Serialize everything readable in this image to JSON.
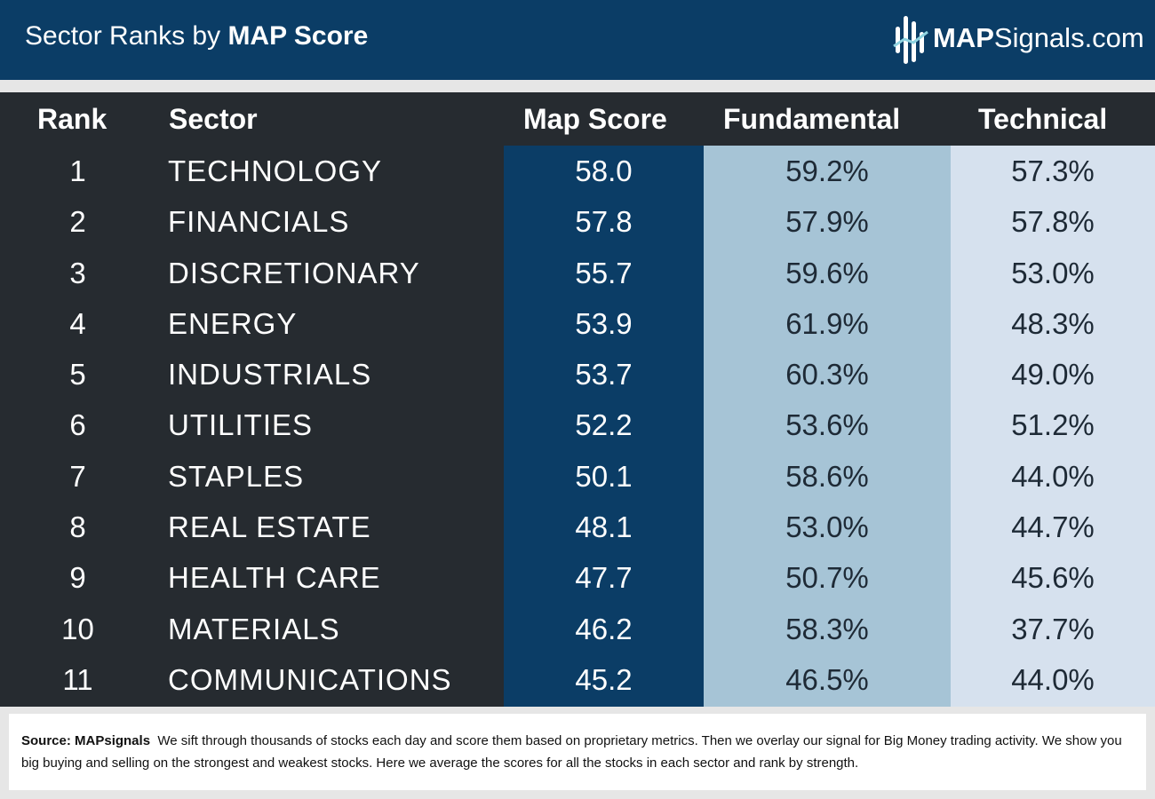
{
  "header": {
    "title_prefix": "Sector Ranks by ",
    "title_bold": "MAP Score",
    "logo_bold": "MAP",
    "logo_rest": "Signals.com"
  },
  "table": {
    "columns": [
      "Rank",
      "Sector",
      "Map Score",
      "Fundamental",
      "Technical"
    ]
  },
  "chart_data": {
    "type": "table",
    "title": "Sector Ranks by MAP Score",
    "columns": [
      "Rank",
      "Sector",
      "Map Score",
      "Fundamental",
      "Technical"
    ],
    "rows": [
      {
        "rank": "1",
        "sector": "TECHNOLOGY",
        "map_score": "58.0",
        "fundamental": "59.2%",
        "technical": "57.3%"
      },
      {
        "rank": "2",
        "sector": "FINANCIALS",
        "map_score": "57.8",
        "fundamental": "57.9%",
        "technical": "57.8%"
      },
      {
        "rank": "3",
        "sector": "DISCRETIONARY",
        "map_score": "55.7",
        "fundamental": "59.6%",
        "technical": "53.0%"
      },
      {
        "rank": "4",
        "sector": "ENERGY",
        "map_score": "53.9",
        "fundamental": "61.9%",
        "technical": "48.3%"
      },
      {
        "rank": "5",
        "sector": "INDUSTRIALS",
        "map_score": "53.7",
        "fundamental": "60.3%",
        "technical": "49.0%"
      },
      {
        "rank": "6",
        "sector": "UTILITIES",
        "map_score": "52.2",
        "fundamental": "53.6%",
        "technical": "51.2%"
      },
      {
        "rank": "7",
        "sector": "STAPLES",
        "map_score": "50.1",
        "fundamental": "58.6%",
        "technical": "44.0%"
      },
      {
        "rank": "8",
        "sector": "REAL ESTATE",
        "map_score": "48.1",
        "fundamental": "53.0%",
        "technical": "44.7%"
      },
      {
        "rank": "9",
        "sector": "HEALTH CARE",
        "map_score": "47.7",
        "fundamental": "50.7%",
        "technical": "45.6%"
      },
      {
        "rank": "10",
        "sector": "MATERIALS",
        "map_score": "46.2",
        "fundamental": "58.3%",
        "technical": "37.7%"
      },
      {
        "rank": "11",
        "sector": "COMMUNICATIONS",
        "map_score": "45.2",
        "fundamental": "46.5%",
        "technical": "44.0%"
      }
    ]
  },
  "footer": {
    "source_label": "Source:  MAPsignals",
    "text": "We sift through thousands of stocks each day and score them based on proprietary metrics. Then we overlay our signal for Big Money trading activity. We show you big buying and selling on the strongest and weakest stocks. Here we average the scores for all the stocks in each sector and rank by strength."
  },
  "colors": {
    "header_bg": "#0b3d66",
    "table_bg": "#262b30",
    "map_col": "#0b3d66",
    "fundamental_col": "#a6c4d6",
    "technical_col": "#d6e1ee",
    "logo_accent": "#8fd3e0"
  }
}
